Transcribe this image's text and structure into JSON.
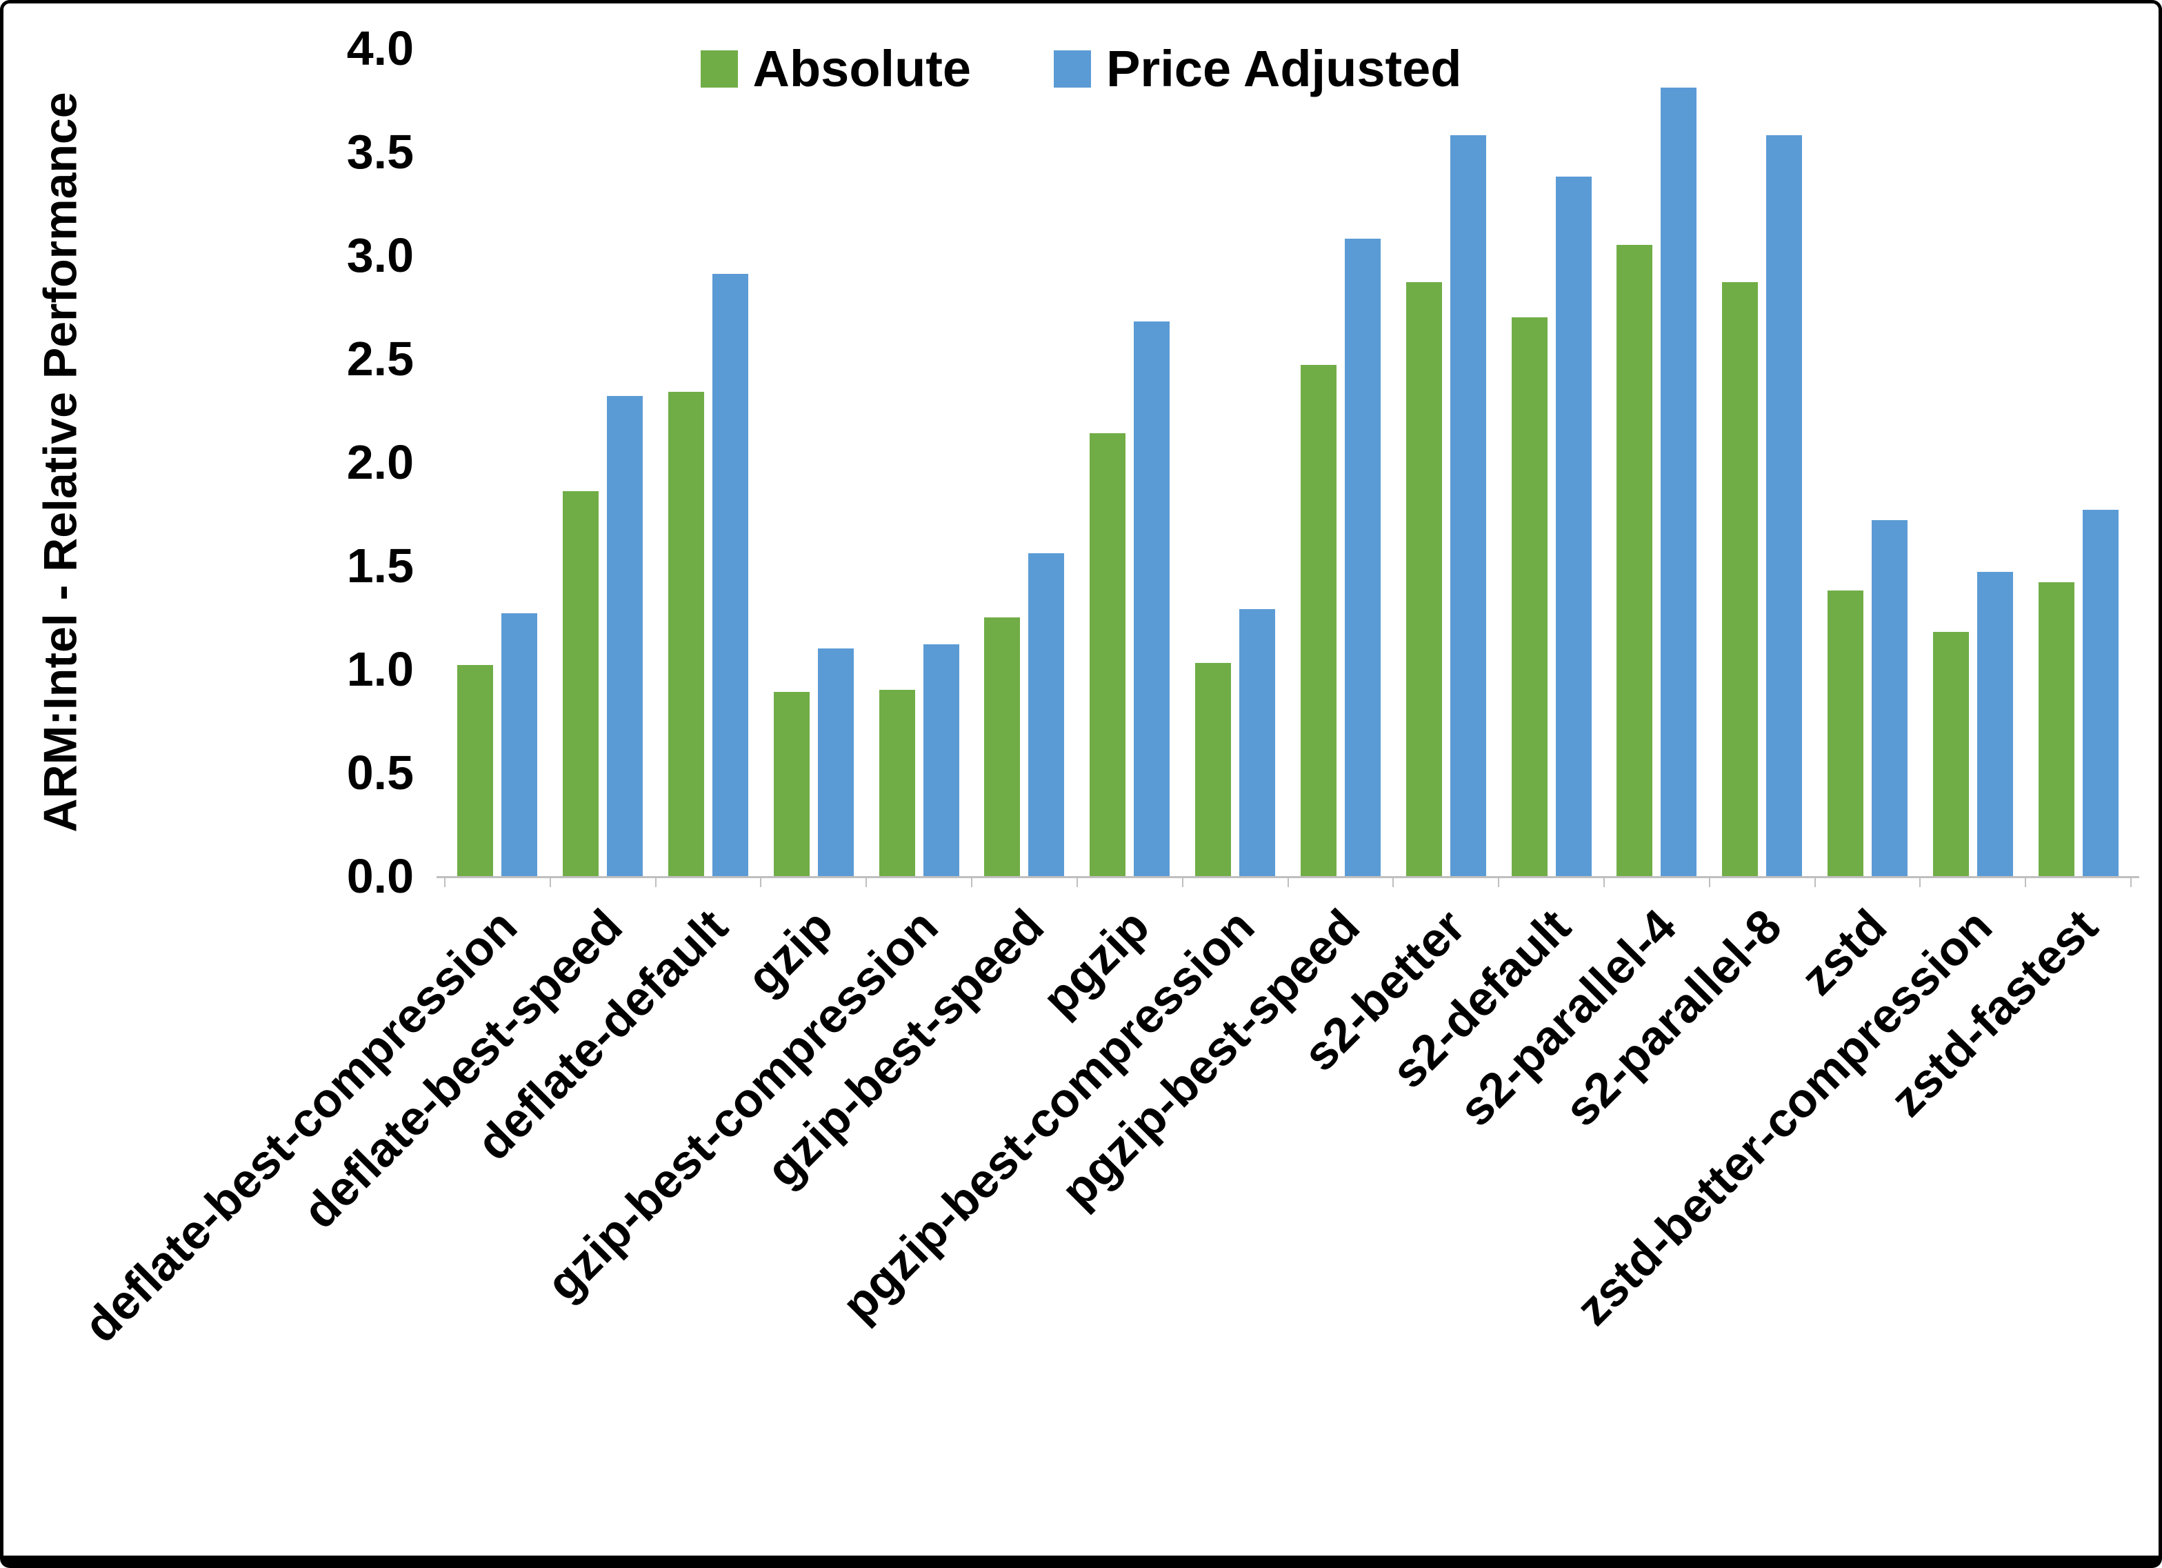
{
  "chart_data": {
    "type": "bar",
    "title": "",
    "ylabel": "ARM:Intel - Relative Performance",
    "xlabel": "",
    "ylim": [
      0,
      4
    ],
    "ytick_step": 0.5,
    "ytick_labels": [
      "0.0",
      "0.5",
      "1.0",
      "1.5",
      "2.0",
      "2.5",
      "3.0",
      "3.5",
      "4.0"
    ],
    "grid": false,
    "legend_position": "top-center",
    "categories": [
      "deflate-best-compression",
      "deflate-best-speed",
      "deflate-default",
      "gzip",
      "gzip-best-compression",
      "gzip-best-speed",
      "pgzip",
      "pgzip-best-compression",
      "pgzip-best-speed",
      "s2-better",
      "s2-default",
      "s2-parallel-4",
      "s2-parallel-8",
      "zstd",
      "zstd-better-compression",
      "zstd-fastest"
    ],
    "series": [
      {
        "name": "Absolute",
        "color": "#70AD47",
        "values": [
          1.02,
          1.86,
          2.34,
          0.89,
          0.9,
          1.25,
          2.14,
          1.03,
          2.47,
          2.87,
          2.7,
          3.05,
          2.87,
          1.38,
          1.18,
          1.42
        ]
      },
      {
        "name": "Price Adjusted",
        "color": "#5B9BD5",
        "values": [
          1.27,
          2.32,
          2.91,
          1.1,
          1.12,
          1.56,
          2.68,
          1.29,
          3.08,
          3.58,
          3.38,
          3.81,
          3.58,
          1.72,
          1.47,
          1.77
        ]
      }
    ],
    "axis_line_color": "#bfbfbf",
    "text_color": "#000000"
  }
}
